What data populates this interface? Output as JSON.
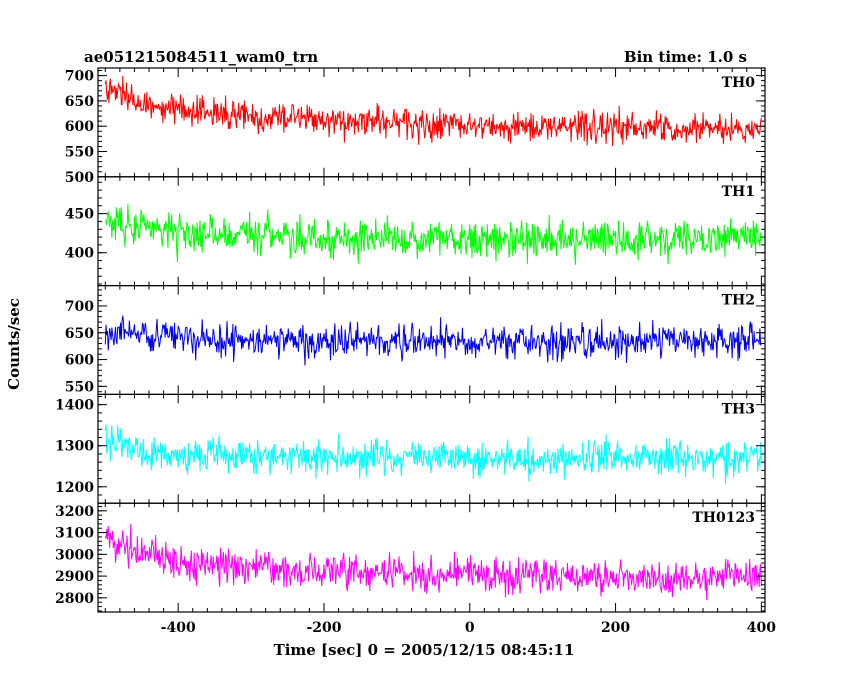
{
  "chart_data": {
    "type": "line",
    "title": "ae051215084511_wam0_trn",
    "subtitle": "Bin time: 1.0 s",
    "xlabel": "Time [sec] 0 = 2005/12/15 08:45:11",
    "ylabel": "Counts/sec",
    "xlim": [
      -510,
      405
    ],
    "x_ticks": [
      -400,
      -200,
      0,
      200,
      400
    ],
    "x_start": -500,
    "x_end": 400,
    "bin": 1,
    "grid": false,
    "legend": "none",
    "panels": [
      {
        "name": "TH0",
        "color": "#ff0000",
        "ylim": [
          500,
          715
        ],
        "yticks": [
          500,
          550,
          600,
          650,
          700
        ],
        "minor": 10,
        "trend": [
          [
            -500,
            670
          ],
          [
            -450,
            645
          ],
          [
            -400,
            630
          ],
          [
            -300,
            620
          ],
          [
            -200,
            612
          ],
          [
            -100,
            605
          ],
          [
            0,
            600
          ],
          [
            100,
            600
          ],
          [
            200,
            597
          ],
          [
            300,
            595
          ],
          [
            400,
            592
          ]
        ],
        "noise": 22
      },
      {
        "name": "TH1",
        "color": "#00ff00",
        "ylim": [
          358,
          497
        ],
        "yticks": [
          400,
          450
        ],
        "minor": 10,
        "trend": [
          [
            -500,
            440
          ],
          [
            -450,
            432
          ],
          [
            -400,
            425
          ],
          [
            -300,
            422
          ],
          [
            -200,
            420
          ],
          [
            0,
            418
          ],
          [
            200,
            418
          ],
          [
            400,
            420
          ]
        ],
        "noise": 17
      },
      {
        "name": "TH2",
        "color": "#0000ee",
        "ylim": [
          535,
          738
        ],
        "yticks": [
          550,
          600,
          650,
          700
        ],
        "minor": 10,
        "trend": [
          [
            -500,
            650
          ],
          [
            -400,
            640
          ],
          [
            -200,
            635
          ],
          [
            0,
            632
          ],
          [
            200,
            633
          ],
          [
            400,
            635
          ]
        ],
        "noise": 22
      },
      {
        "name": "TH3",
        "color": "#00ffff",
        "ylim": [
          1160,
          1425
        ],
        "yticks": [
          1200,
          1300,
          1400
        ],
        "minor": 20,
        "trend": [
          [
            -500,
            1310
          ],
          [
            -450,
            1285
          ],
          [
            -400,
            1275
          ],
          [
            -200,
            1270
          ],
          [
            0,
            1268
          ],
          [
            200,
            1268
          ],
          [
            400,
            1270
          ]
        ],
        "noise": 30
      },
      {
        "name": "TH0123",
        "color": "#ff00ff",
        "ylim": [
          2735,
          3235
        ],
        "yticks": [
          2800,
          2900,
          3000,
          3100,
          3200
        ],
        "minor": 20,
        "trend": [
          [
            -500,
            3080
          ],
          [
            -450,
            3010
          ],
          [
            -400,
            2960
          ],
          [
            -300,
            2935
          ],
          [
            -200,
            2920
          ],
          [
            0,
            2905
          ],
          [
            200,
            2895
          ],
          [
            300,
            2890
          ],
          [
            400,
            2900
          ]
        ],
        "noise": 55
      }
    ]
  }
}
